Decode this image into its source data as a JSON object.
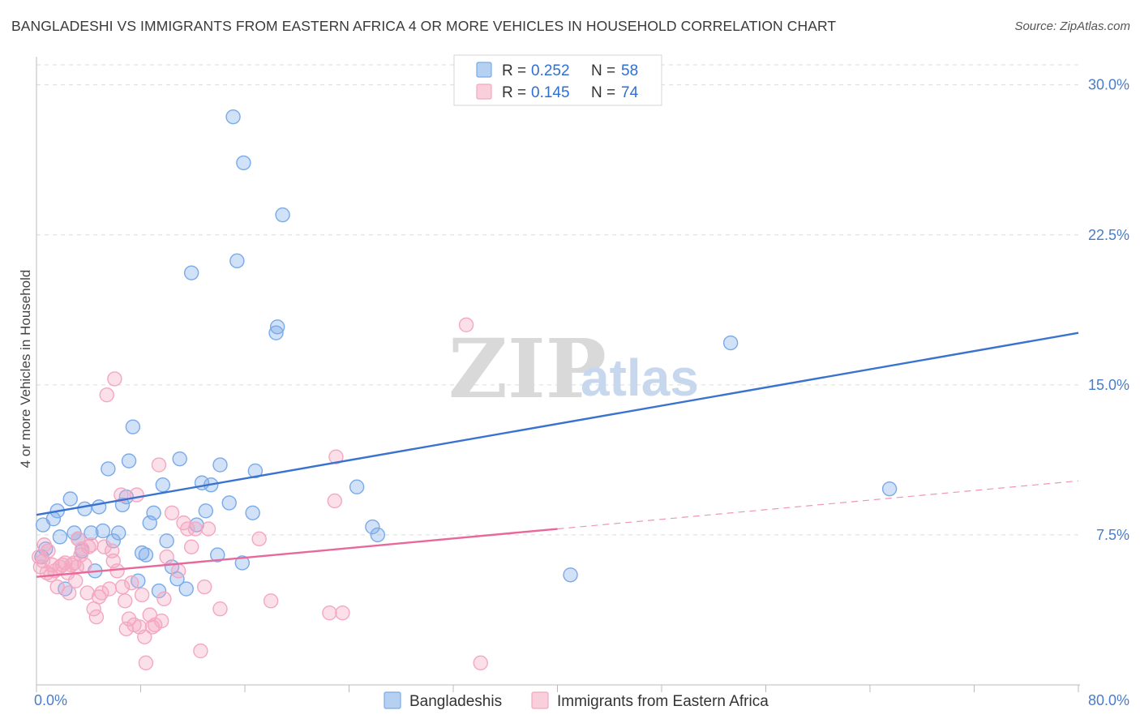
{
  "header": {
    "title": "BANGLADESHI VS IMMIGRANTS FROM EASTERN AFRICA 4 OR MORE VEHICLES IN HOUSEHOLD CORRELATION CHART",
    "source": "Source: ZipAtlas.com"
  },
  "watermark": {
    "zip": "ZIP",
    "atlas": "atlas"
  },
  "chart_data": {
    "type": "scatter",
    "title": "BANGLADESHI VS IMMIGRANTS FROM EASTERN AFRICA 4 OR MORE VEHICLES IN HOUSEHOLD CORRELATION CHART",
    "xlabel": "",
    "ylabel": "4 or more Vehicles in Household",
    "xlim": [
      0,
      80
    ],
    "ylim": [
      0,
      31
    ],
    "x_tick_labels": [
      "0.0%",
      "80.0%"
    ],
    "y_ticks": [
      7.5,
      15.0,
      22.5,
      30.0
    ],
    "y_tick_labels": [
      "7.5%",
      "15.0%",
      "22.5%",
      "30.0%"
    ],
    "grid": true,
    "legend_position": "top-center",
    "series": [
      {
        "name": "Bangladeshis",
        "color": "#7aaae8",
        "line_color": "#3a72d0",
        "r_label": "R =",
        "r_value": "0.252",
        "n_label": "N =",
        "n_value": "58",
        "trend": {
          "x": [
            0,
            80
          ],
          "y": [
            8.5,
            17.6
          ],
          "dashed_from": null
        },
        "points": [
          [
            0.5,
            8.0
          ],
          [
            1.3,
            8.3
          ],
          [
            1.6,
            8.7
          ],
          [
            1.8,
            7.4
          ],
          [
            2.2,
            4.8
          ],
          [
            2.6,
            9.3
          ],
          [
            2.9,
            7.6
          ],
          [
            3.2,
            7.3
          ],
          [
            3.5,
            6.7
          ],
          [
            3.7,
            8.8
          ],
          [
            4.2,
            7.6
          ],
          [
            4.5,
            5.7
          ],
          [
            4.8,
            8.9
          ],
          [
            5.1,
            7.7
          ],
          [
            5.5,
            10.8
          ],
          [
            5.9,
            7.2
          ],
          [
            6.3,
            7.6
          ],
          [
            6.6,
            9.0
          ],
          [
            6.9,
            9.4
          ],
          [
            7.1,
            11.2
          ],
          [
            7.4,
            12.9
          ],
          [
            7.8,
            5.2
          ],
          [
            8.1,
            6.6
          ],
          [
            8.4,
            6.5
          ],
          [
            8.7,
            8.1
          ],
          [
            9.0,
            8.6
          ],
          [
            9.4,
            4.7
          ],
          [
            9.7,
            10.0
          ],
          [
            10.0,
            7.2
          ],
          [
            10.4,
            5.9
          ],
          [
            10.8,
            5.3
          ],
          [
            11.0,
            11.3
          ],
          [
            11.5,
            4.8
          ],
          [
            11.9,
            20.6
          ],
          [
            12.3,
            8.0
          ],
          [
            12.7,
            10.1
          ],
          [
            13.0,
            8.7
          ],
          [
            13.4,
            10.0
          ],
          [
            13.9,
            6.5
          ],
          [
            14.1,
            11.0
          ],
          [
            14.8,
            9.1
          ],
          [
            15.1,
            28.4
          ],
          [
            15.4,
            21.2
          ],
          [
            15.8,
            6.1
          ],
          [
            15.9,
            26.1
          ],
          [
            16.6,
            8.6
          ],
          [
            16.8,
            10.7
          ],
          [
            18.4,
            17.6
          ],
          [
            18.5,
            17.9
          ],
          [
            18.9,
            23.5
          ],
          [
            24.6,
            9.9
          ],
          [
            25.8,
            7.9
          ],
          [
            26.2,
            7.5
          ],
          [
            41.0,
            5.5
          ],
          [
            53.3,
            17.1
          ],
          [
            65.5,
            9.8
          ],
          [
            0.4,
            6.4
          ],
          [
            0.7,
            6.8
          ]
        ]
      },
      {
        "name": "Immigrants from Eastern Africa",
        "color": "#f4a7c0",
        "line_color": "#e8689a",
        "r_label": "R =",
        "r_value": "0.145",
        "n_label": "N =",
        "n_value": "74",
        "trend": {
          "x": [
            0,
            80
          ],
          "y": [
            5.4,
            10.2
          ],
          "dashed_from": 40
        },
        "points": [
          [
            0.2,
            6.4
          ],
          [
            0.3,
            5.9
          ],
          [
            0.5,
            6.2
          ],
          [
            0.6,
            7.0
          ],
          [
            0.8,
            5.6
          ],
          [
            0.9,
            6.7
          ],
          [
            1.1,
            5.5
          ],
          [
            1.2,
            6.0
          ],
          [
            1.4,
            5.7
          ],
          [
            1.6,
            4.9
          ],
          [
            1.8,
            5.9
          ],
          [
            2.0,
            6.0
          ],
          [
            2.2,
            6.1
          ],
          [
            2.4,
            5.6
          ],
          [
            2.5,
            4.6
          ],
          [
            2.7,
            6.0
          ],
          [
            2.9,
            6.1
          ],
          [
            3.0,
            5.2
          ],
          [
            3.2,
            7.3
          ],
          [
            3.4,
            6.5
          ],
          [
            3.5,
            6.8
          ],
          [
            3.7,
            6.0
          ],
          [
            3.9,
            4.6
          ],
          [
            4.0,
            6.9
          ],
          [
            4.2,
            7.0
          ],
          [
            4.4,
            3.8
          ],
          [
            4.6,
            3.4
          ],
          [
            4.8,
            4.4
          ],
          [
            5.0,
            4.6
          ],
          [
            5.2,
            6.9
          ],
          [
            5.4,
            14.5
          ],
          [
            5.6,
            4.8
          ],
          [
            5.8,
            6.7
          ],
          [
            5.9,
            6.2
          ],
          [
            6.0,
            15.3
          ],
          [
            6.2,
            5.7
          ],
          [
            6.5,
            9.5
          ],
          [
            6.6,
            4.9
          ],
          [
            6.8,
            4.2
          ],
          [
            6.9,
            2.8
          ],
          [
            7.1,
            3.3
          ],
          [
            7.3,
            5.1
          ],
          [
            7.5,
            3.0
          ],
          [
            7.7,
            9.5
          ],
          [
            7.9,
            2.9
          ],
          [
            8.1,
            4.5
          ],
          [
            8.3,
            2.4
          ],
          [
            8.4,
            1.1
          ],
          [
            8.7,
            3.5
          ],
          [
            8.9,
            2.9
          ],
          [
            9.1,
            3.0
          ],
          [
            9.4,
            11.0
          ],
          [
            9.6,
            3.2
          ],
          [
            9.8,
            4.3
          ],
          [
            10.0,
            6.4
          ],
          [
            10.4,
            8.6
          ],
          [
            10.9,
            5.7
          ],
          [
            11.3,
            8.1
          ],
          [
            11.6,
            7.8
          ],
          [
            11.9,
            6.9
          ],
          [
            12.2,
            7.8
          ],
          [
            12.6,
            1.7
          ],
          [
            12.9,
            4.9
          ],
          [
            13.2,
            7.8
          ],
          [
            14.1,
            3.8
          ],
          [
            17.1,
            7.3
          ],
          [
            18.0,
            4.2
          ],
          [
            22.5,
            3.6
          ],
          [
            22.9,
            9.2
          ],
          [
            23.0,
            11.4
          ],
          [
            23.5,
            3.6
          ],
          [
            33.0,
            18.0
          ],
          [
            34.1,
            1.1
          ],
          [
            3.1,
            5.9
          ]
        ]
      }
    ]
  }
}
